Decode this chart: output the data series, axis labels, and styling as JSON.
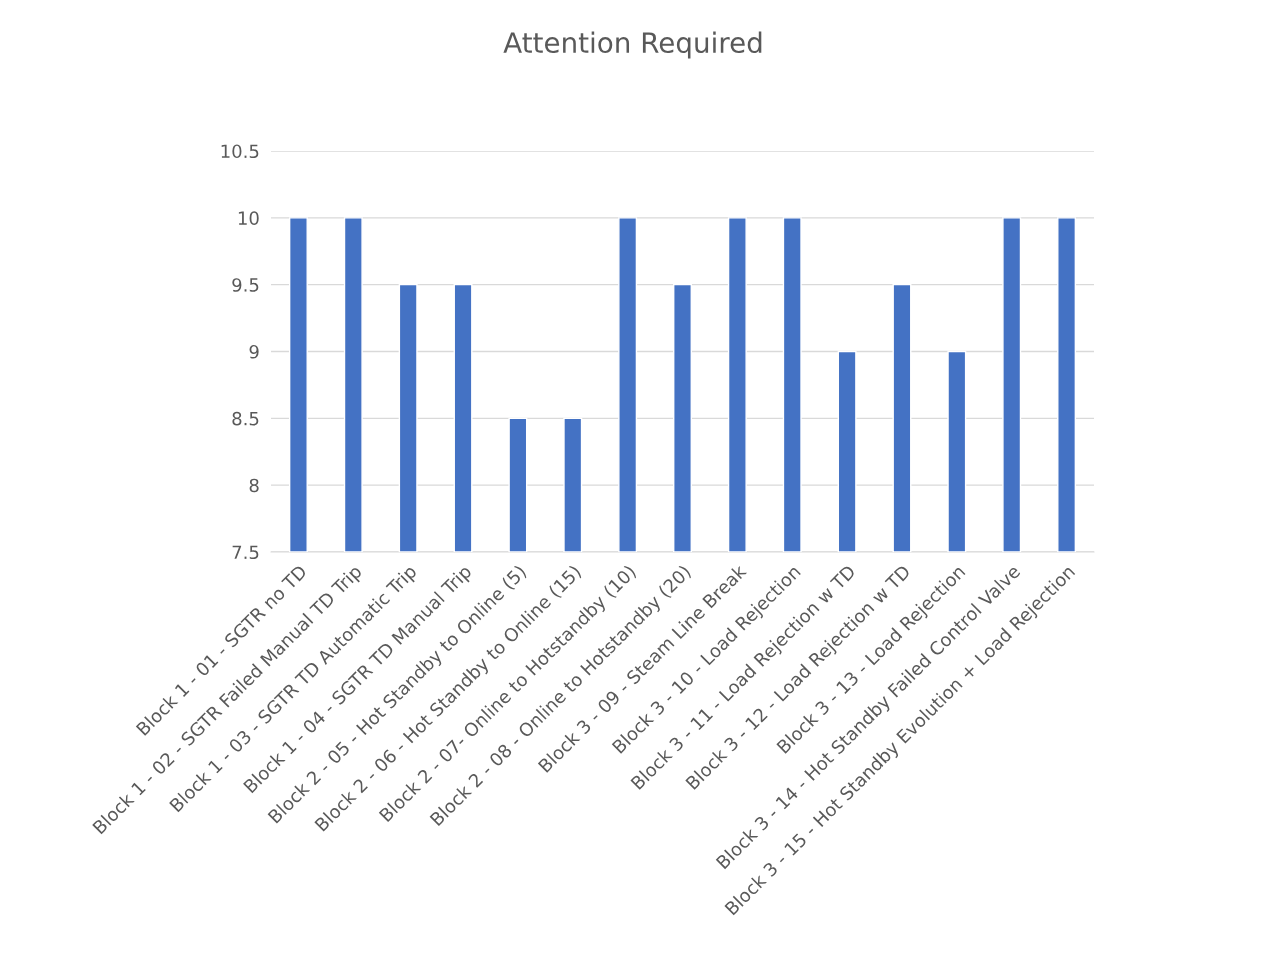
{
  "chart_data": {
    "type": "bar",
    "title": "Attention Required",
    "categories": [
      "Block 1 - 01 - SGTR no TD",
      "Block 1 - 02 - SGTR Failed Manual TD Trip",
      "Block 1 - 03 - SGTR TD Automatic Trip",
      "Block 1 - 04 - SGTR TD Manual Trip",
      "Block 2 - 05 - Hot Standby to Online (5)",
      "Block 2 - 06 - Hot Standby to Online (15)",
      "Block 2 - 07- Online to Hotstandby (10)",
      "Block 2 - 08 - Online to Hotstandby (20)",
      "Block 3 - 09 - Steam Line Break",
      "Block 3 - 10 - Load Rejection",
      "Block 3 - 11 - Load Rejection w TD",
      "Block 3 - 12 - Load Rejection w TD",
      "Block 3 - 13 - Load Rejection",
      "Block 3 - 14 - Hot Standby Failed Control Valve",
      "Block 3 - 15 - Hot Standby Evolution + Load Rejection"
    ],
    "values": [
      10,
      10,
      9.5,
      9.5,
      8.5,
      8.5,
      10,
      9.5,
      10,
      10,
      9,
      9.5,
      9,
      10,
      10
    ],
    "color": "#4472c4",
    "ylim": [
      7.5,
      10.5
    ],
    "yticks": [
      7.5,
      8,
      8.5,
      9,
      9.5,
      10,
      10.5
    ],
    "grid": "y"
  }
}
